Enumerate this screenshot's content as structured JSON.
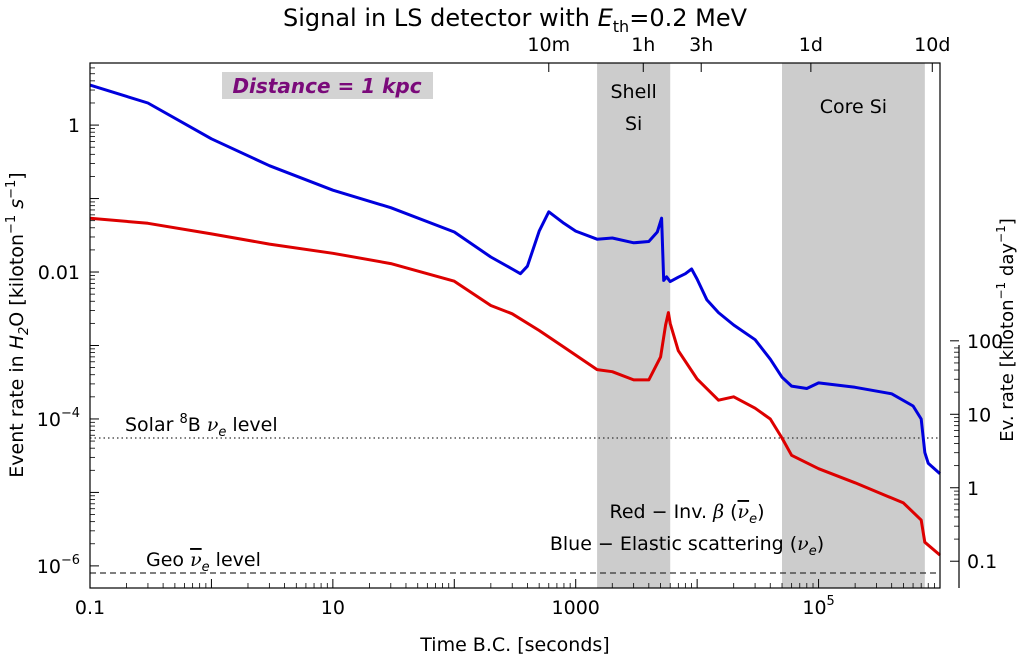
{
  "chart_data": {
    "type": "line",
    "title": "Signal in LS detector with E_th=0.2 MeV",
    "title_parts": {
      "prefix": "Signal in LS detector with ",
      "var": "E",
      "sub": "th",
      "suffix": "=0.2 MeV"
    },
    "xlabel": "Time B.C. [seconds]",
    "ylabel": "Event rate in H2O  [kiloton^-1 s^-1]",
    "ylabel_parts": {
      "prefix": "Event rate in ",
      "var": "H",
      "sub": "2",
      "mid": "O  [kiloton",
      "sup1": "−1",
      "mid2": " s",
      "sup2": "−1",
      "suffix": "]"
    },
    "y2label": "Ev. rate [kiloton^-1 day^-1]",
    "y2label_parts": {
      "prefix": "Ev. rate [kiloton",
      "sup1": "−1",
      "mid": " day",
      "sup2": "−1",
      "suffix": "]"
    },
    "x_scale": "log",
    "y_scale": "log",
    "xlim": [
      0.1,
      1000000
    ],
    "ylim": [
      5e-07,
      7
    ],
    "x_ticks": [
      {
        "value": 0.1,
        "label": "0.1"
      },
      {
        "value": 10,
        "label": "10"
      },
      {
        "value": 1000,
        "label": "1000"
      },
      {
        "value": 100000,
        "label": "10",
        "exp": "5"
      }
    ],
    "y_ticks": [
      {
        "value": 1,
        "label": "1"
      },
      {
        "value": 0.01,
        "label": "0.01"
      },
      {
        "value": 0.0001,
        "label": "10",
        "exp": "−4"
      },
      {
        "value": 1e-06,
        "label": "10",
        "exp": "−6"
      }
    ],
    "top_ticks": [
      {
        "value": 600,
        "label": "10m"
      },
      {
        "value": 3600,
        "label": "1h"
      },
      {
        "value": 10800,
        "label": "3h"
      },
      {
        "value": 86400,
        "label": "1d"
      },
      {
        "value": 864000,
        "label": "10d"
      }
    ],
    "right_ticks": [
      {
        "value": 100,
        "label": "100"
      },
      {
        "value": 10,
        "label": "10"
      },
      {
        "value": 1,
        "label": "1"
      },
      {
        "value": 0.1,
        "label": "0.1"
      }
    ],
    "bands": [
      {
        "x0": 1500,
        "x1": 6000,
        "label1": "Shell",
        "label2": "Si"
      },
      {
        "x0": 50000,
        "x1": 750000,
        "label1": "Core Si",
        "label2": ""
      }
    ],
    "reference_lines": [
      {
        "y": 5.5e-05,
        "style": "dotted",
        "label_prefix": "Solar ",
        "label_sup": "8",
        "label_mid": "B ",
        "label_nu": "ν",
        "label_sub": "e",
        "label_suffix": " level"
      },
      {
        "y": 8e-07,
        "style": "dashed",
        "label_prefix": "Geo ",
        "label_nu": "ν",
        "label_sub": "e",
        "label_suffix": " level"
      }
    ],
    "annotations": [
      {
        "text": "Distance = 1 kpc",
        "style": "boxed-italic-bold",
        "color": "#7a0a7a"
      }
    ],
    "legend_text": [
      {
        "prefix": "Red − Inv. ",
        "beta": "β",
        "nu": "ν",
        "bar": true,
        "sub": "e",
        "color": "red"
      },
      {
        "prefix": "Blue − Elastic scattering ",
        "beta": "",
        "nu": "ν",
        "bar": false,
        "sub": "e",
        "color": "blue"
      }
    ],
    "series": [
      {
        "color": "#0000dd",
        "x": [
          0.1,
          0.3,
          1,
          3,
          10,
          30,
          100,
          200,
          300,
          350,
          400,
          500,
          600,
          800,
          1000,
          1500,
          2000,
          3000,
          4000,
          4700,
          5100,
          5300,
          5600,
          6000,
          7000,
          8000,
          9000,
          10000,
          12000,
          15000,
          20000,
          30000,
          40000,
          50000,
          60000,
          80000,
          100000,
          200000,
          400000,
          600000,
          700000,
          750000,
          800000,
          1000000
        ],
        "y": [
          3.5,
          2.0,
          0.65,
          0.28,
          0.13,
          0.075,
          0.035,
          0.016,
          0.011,
          0.0095,
          0.012,
          0.036,
          0.066,
          0.046,
          0.036,
          0.028,
          0.029,
          0.025,
          0.026,
          0.035,
          0.054,
          0.0077,
          0.0086,
          0.0074,
          0.0085,
          0.0095,
          0.011,
          0.008,
          0.0042,
          0.0028,
          0.0019,
          0.0012,
          0.00065,
          0.00037,
          0.00028,
          0.00026,
          0.00031,
          0.00027,
          0.00022,
          0.00015,
          0.0001,
          3.5e-05,
          2.5e-05,
          1.8e-05
        ]
      },
      {
        "color": "#dd0000",
        "x": [
          0.1,
          0.3,
          1,
          3,
          10,
          30,
          100,
          200,
          300,
          500,
          800,
          1000,
          1500,
          2000,
          3000,
          4000,
          5000,
          5500,
          5800,
          6000,
          7000,
          10000,
          15000,
          20000,
          30000,
          40000,
          50000,
          60000,
          100000,
          200000,
          500000,
          700000,
          750000,
          1000000
        ],
        "y": [
          0.054,
          0.046,
          0.033,
          0.024,
          0.018,
          0.013,
          0.0075,
          0.0035,
          0.0027,
          0.0016,
          0.00095,
          0.00074,
          0.00047,
          0.00044,
          0.00034,
          0.00034,
          0.0007,
          0.0019,
          0.0028,
          0.002,
          0.00085,
          0.00035,
          0.00018,
          0.0002,
          0.00014,
          0.0001,
          5.5e-05,
          3.2e-05,
          2.1e-05,
          1.35e-05,
          7.2e-06,
          4.2e-06,
          2.1e-06,
          1.4e-06
        ]
      }
    ]
  }
}
